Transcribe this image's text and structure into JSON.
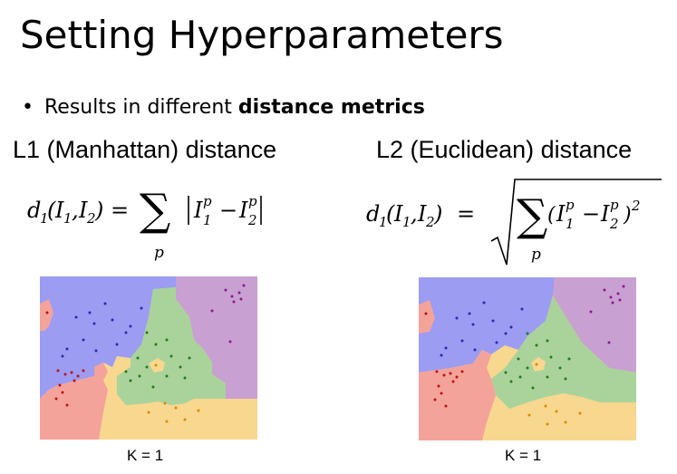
{
  "slide": {
    "title": "Setting Hyperparameters",
    "bullet_prefix": "Results in different ",
    "bullet_bold": "distance metrics"
  },
  "left": {
    "heading": "L1 (Manhattan) distance",
    "formula_text": "d1(I1,I2) = Σp |I1p − I2p|",
    "caption": "K = 1"
  },
  "right": {
    "heading": "L2 (Euclidean) distance",
    "formula_text": "d1(I1,I2) = √(Σp (I1p − I2p)²)",
    "caption": "K = 1"
  },
  "colors": {
    "blue": "#9b9cf2",
    "purple": "#c9a0d2",
    "green": "#a9d39a",
    "yellow": "#f8d78f",
    "red": "#f4a39b",
    "dot_blue": "#2a2aa8",
    "dot_purple": "#8a1a8a",
    "dot_green": "#1f7a1f",
    "dot_orange": "#d98a00",
    "dot_red": "#c01010"
  }
}
